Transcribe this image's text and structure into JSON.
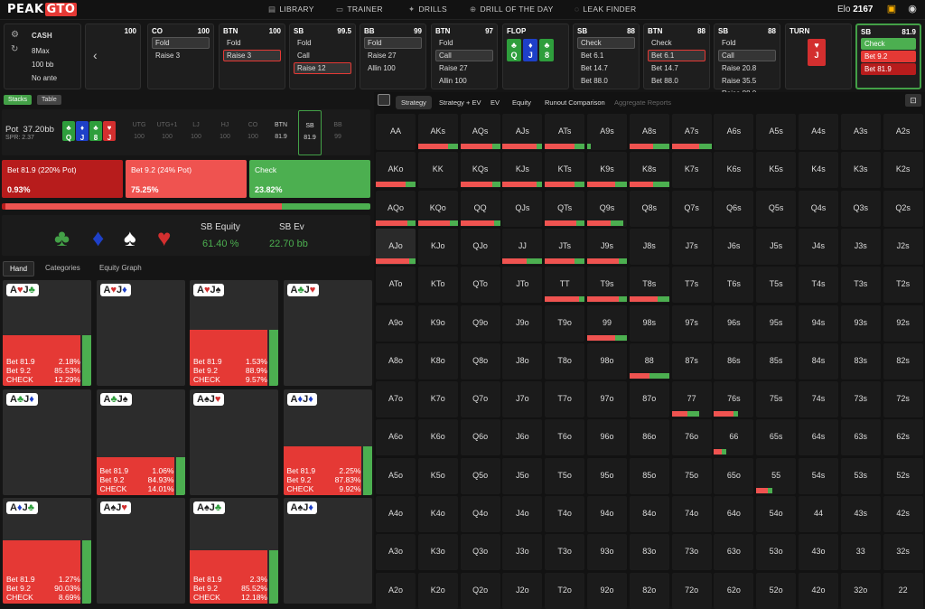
{
  "app": {
    "logo_main": "PEAK",
    "logo_accent": "GTO",
    "elo_label": "Elo",
    "elo_value": "2167"
  },
  "nav": [
    {
      "label": "LIBRARY",
      "icon": "library-icon"
    },
    {
      "label": "TRAINER",
      "icon": "trainer-icon"
    },
    {
      "label": "DRILLS",
      "icon": "drills-icon"
    },
    {
      "label": "DRILL OF THE DAY",
      "icon": "drill-day-icon"
    },
    {
      "label": "LEAK FINDER",
      "icon": "leak-icon"
    }
  ],
  "settings": {
    "mode": "CASH",
    "table": "8Max",
    "stack": "100 bb",
    "ante": "No ante"
  },
  "action_cards": [
    {
      "pos": "",
      "stack": "100",
      "actions": []
    },
    {
      "pos": "CO",
      "stack": "100",
      "actions": [
        "Fold",
        "Raise 3"
      ]
    },
    {
      "pos": "BTN",
      "stack": "100",
      "actions": [
        "Fold",
        "Raise 3"
      ]
    },
    {
      "pos": "SB",
      "stack": "99.5",
      "actions": [
        "Fold",
        "Call",
        "Raise 12"
      ]
    },
    {
      "pos": "BB",
      "stack": "99",
      "actions": [
        "Fold",
        "Raise 27",
        "Allin 100"
      ]
    },
    {
      "pos": "BTN",
      "stack": "97",
      "actions": [
        "Fold",
        "Call",
        "Raise 27",
        "Allin 100"
      ]
    },
    {
      "pos": "FLOP",
      "stack": "",
      "actions": []
    },
    {
      "pos": "SB",
      "stack": "88",
      "actions": [
        "Check",
        "Bet 6.1",
        "Bet 14.7",
        "Bet 88.0"
      ]
    },
    {
      "pos": "BTN",
      "stack": "88",
      "actions": [
        "Check",
        "Bet 6.1",
        "Bet 14.7",
        "Bet 88.0"
      ]
    },
    {
      "pos": "SB",
      "stack": "88",
      "actions": [
        "Fold",
        "Call",
        "Raise 20.8",
        "Raise 35.5",
        "Raise 88.0"
      ]
    },
    {
      "pos": "TURN",
      "stack": "",
      "actions": []
    },
    {
      "pos": "SB",
      "stack": "81.9",
      "actions": [
        "Check",
        "Bet 9.2",
        "Bet 81.9"
      ]
    }
  ],
  "flop_cards": [
    {
      "rank": "Q",
      "suit": "♣"
    },
    {
      "rank": "J",
      "suit": "♦"
    },
    {
      "rank": "8",
      "suit": "♣"
    }
  ],
  "turn_card": {
    "rank": "J",
    "suit": "♥"
  },
  "left": {
    "stacks_btn": "Stacks",
    "table_btn": "Table",
    "pot_label": "Pot",
    "pot_value": "37.20bb",
    "spr": "SPR: 2.37",
    "board": [
      "Q",
      "J",
      "8",
      "J"
    ],
    "positions": [
      {
        "name": "UTG",
        "stack": "100"
      },
      {
        "name": "UTG+1",
        "stack": "100"
      },
      {
        "name": "LJ",
        "stack": "100"
      },
      {
        "name": "HJ",
        "stack": "100"
      },
      {
        "name": "CO",
        "stack": "100"
      },
      {
        "name": "BTN",
        "stack": "81.9"
      },
      {
        "name": "SB",
        "stack": "81.9"
      },
      {
        "name": "BB",
        "stack": "99"
      }
    ],
    "actions": [
      {
        "label": "Bet 81.9 (220% Pot)",
        "value": "0.93%"
      },
      {
        "label": "Bet 9.2 (24% Pot)",
        "value": "75.25%"
      },
      {
        "label": "Check",
        "value": "23.82%"
      }
    ],
    "equity_label": "SB Equity",
    "equity_value": "61.40 %",
    "ev_label": "SB Ev",
    "ev_value": "22.70 bb",
    "tabs": [
      "Hand",
      "Categories",
      "Equity Graph"
    ],
    "hands": [
      {
        "cards": "A♥J♣",
        "bet81": "2.18%",
        "bet9": "85.53%",
        "check": "12.29%",
        "fill": 0.48
      },
      {
        "cards": "A♥J♦",
        "bet81": "",
        "bet9": "",
        "check": "",
        "fill": 0
      },
      {
        "cards": "A♥J♠",
        "bet81": "1.53%",
        "bet9": "88.9%",
        "check": "9.57%",
        "fill": 0.53
      },
      {
        "cards": "A♣J♥",
        "bet81": "",
        "bet9": "",
        "check": "",
        "fill": 0
      },
      {
        "cards": "A♣J♦",
        "bet81": "",
        "bet9": "",
        "check": "",
        "fill": 0
      },
      {
        "cards": "A♣J♠",
        "bet81": "1.06%",
        "bet9": "84.93%",
        "check": "14.01%",
        "fill": 0.36
      },
      {
        "cards": "A♠J♥",
        "bet81": "",
        "bet9": "",
        "check": "",
        "fill": 0
      },
      {
        "cards": "A♦J♦",
        "bet81": "2.25%",
        "bet9": "87.83%",
        "check": "9.92%",
        "fill": 0.46
      },
      {
        "cards": "A♦J♣",
        "bet81": "1.27%",
        "bet9": "90.03%",
        "check": "8.69%",
        "fill": 0.6
      },
      {
        "cards": "A♠J♥",
        "bet81": "",
        "bet9": "",
        "check": "",
        "fill": 0
      },
      {
        "cards": "A♠J♣",
        "bet81": "2.3%",
        "bet9": "85.52%",
        "check": "12.18%",
        "fill": 0.5
      },
      {
        "cards": "A♠J♦",
        "bet81": "",
        "bet9": "",
        "check": "",
        "fill": 0
      }
    ],
    "hand_labels": {
      "bet81": "Bet 81.9",
      "bet9": "Bet 9.2",
      "check": "CHECK"
    }
  },
  "right": {
    "tabs": [
      "Strategy",
      "Strategy + EV",
      "EV",
      "Equity",
      "Runout Comparison",
      "Aggregate Reports"
    ],
    "ranks": [
      "A",
      "K",
      "Q",
      "J",
      "T",
      "9",
      "8",
      "7",
      "6",
      "5",
      "4",
      "3",
      "2"
    ],
    "mix": {
      "AKs": [
        0,
        0.75,
        0.25
      ],
      "AQs": [
        0,
        0.8,
        0.2
      ],
      "AJs": [
        0,
        0.85,
        0.15
      ],
      "ATs": [
        0,
        0.75,
        0.25
      ],
      "A9s": [
        0,
        0,
        0.1
      ],
      "A8s": [
        0,
        0.6,
        0.4
      ],
      "A7s": [
        0,
        0.7,
        0.3
      ],
      "AKo": [
        0,
        0.75,
        0.25
      ],
      "KQs": [
        0,
        0.8,
        0.2
      ],
      "KJs": [
        0,
        0.85,
        0.15
      ],
      "KTs": [
        0,
        0.75,
        0.25
      ],
      "K9s": [
        0,
        0.7,
        0.3
      ],
      "K8s": [
        0,
        0.6,
        0.4
      ],
      "AQo": [
        0,
        0.8,
        0.2
      ],
      "KQo": [
        0,
        0.8,
        0.2
      ],
      "QQ": [
        0,
        0.85,
        0.15
      ],
      "QTs": [
        0,
        0.8,
        0.2
      ],
      "Q9s": [
        0,
        0.6,
        0.3
      ],
      "AJo": [
        0,
        0.85,
        0.15
      ],
      "JJ": [
        0,
        0.6,
        0.4
      ],
      "JTs": [
        0,
        0.75,
        0.25
      ],
      "J9s": [
        0,
        0.8,
        0.2
      ],
      "TT": [
        0,
        0.85,
        0.15
      ],
      "T9s": [
        0,
        0.8,
        0.2
      ],
      "T8s": [
        0,
        0.7,
        0.3
      ],
      "99": [
        0,
        0.7,
        0.3
      ],
      "88": [
        0,
        0.5,
        0.5
      ],
      "77": [
        0,
        0.4,
        0.3
      ],
      "76s": [
        0,
        0.5,
        0.1
      ],
      "66": [
        0,
        0.2,
        0.1
      ],
      "55": [
        0,
        0.3,
        0.1
      ]
    }
  }
}
